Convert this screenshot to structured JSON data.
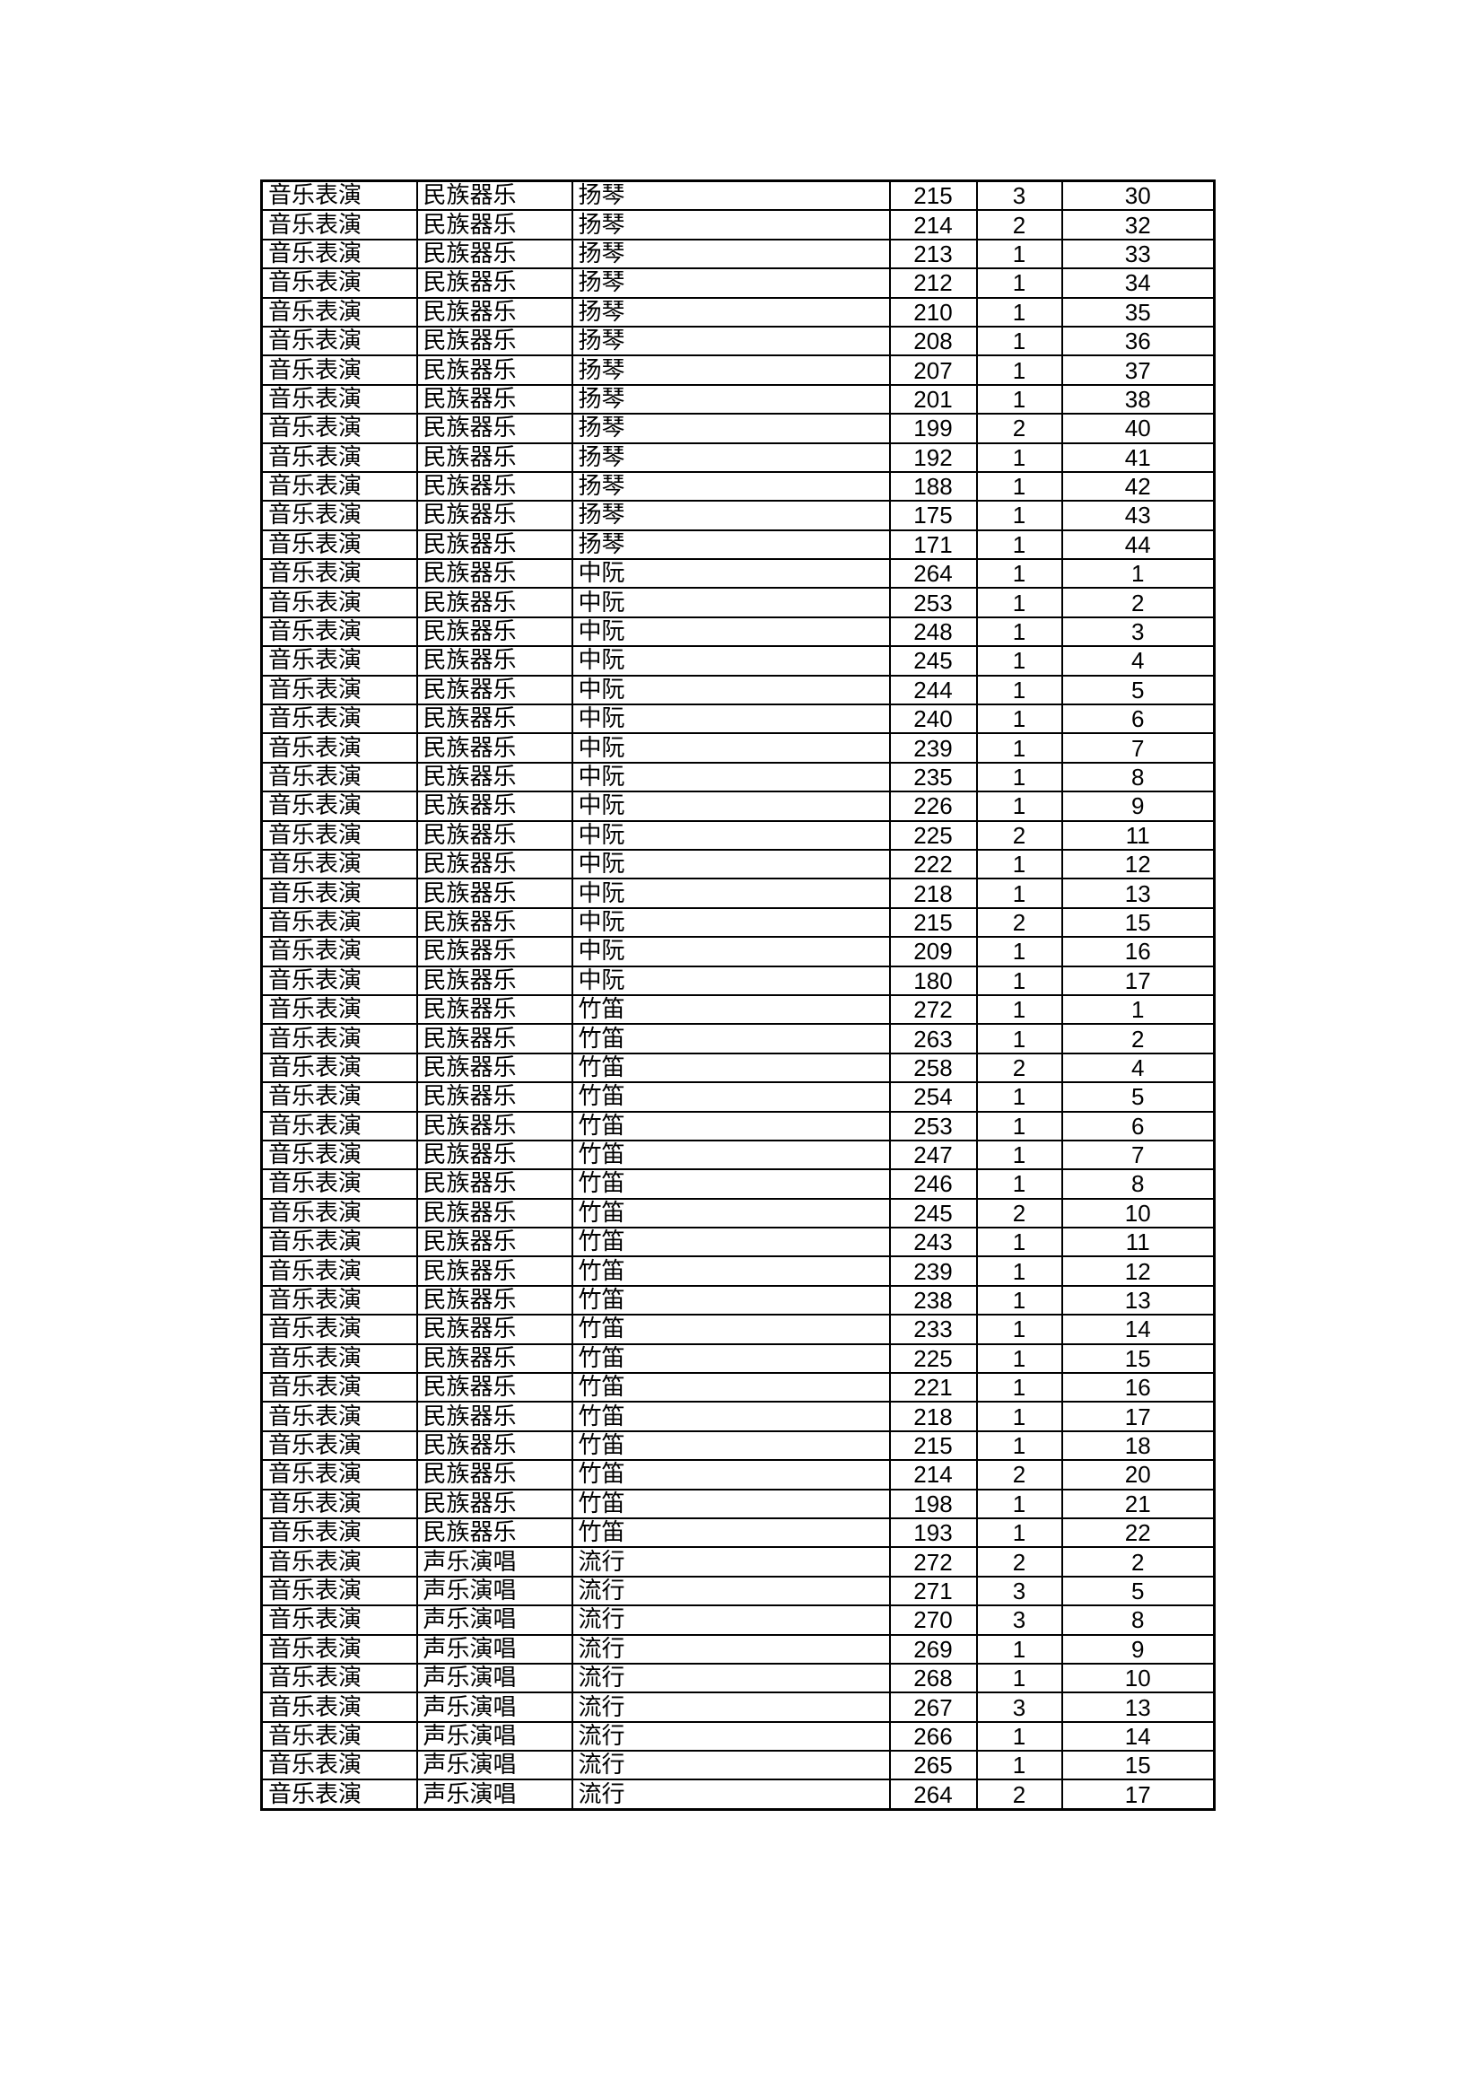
{
  "table": {
    "rows": [
      [
        "音乐表演",
        "民族器乐",
        "扬琴",
        "215",
        "3",
        "30"
      ],
      [
        "音乐表演",
        "民族器乐",
        "扬琴",
        "214",
        "2",
        "32"
      ],
      [
        "音乐表演",
        "民族器乐",
        "扬琴",
        "213",
        "1",
        "33"
      ],
      [
        "音乐表演",
        "民族器乐",
        "扬琴",
        "212",
        "1",
        "34"
      ],
      [
        "音乐表演",
        "民族器乐",
        "扬琴",
        "210",
        "1",
        "35"
      ],
      [
        "音乐表演",
        "民族器乐",
        "扬琴",
        "208",
        "1",
        "36"
      ],
      [
        "音乐表演",
        "民族器乐",
        "扬琴",
        "207",
        "1",
        "37"
      ],
      [
        "音乐表演",
        "民族器乐",
        "扬琴",
        "201",
        "1",
        "38"
      ],
      [
        "音乐表演",
        "民族器乐",
        "扬琴",
        "199",
        "2",
        "40"
      ],
      [
        "音乐表演",
        "民族器乐",
        "扬琴",
        "192",
        "1",
        "41"
      ],
      [
        "音乐表演",
        "民族器乐",
        "扬琴",
        "188",
        "1",
        "42"
      ],
      [
        "音乐表演",
        "民族器乐",
        "扬琴",
        "175",
        "1",
        "43"
      ],
      [
        "音乐表演",
        "民族器乐",
        "扬琴",
        "171",
        "1",
        "44"
      ],
      [
        "音乐表演",
        "民族器乐",
        "中阮",
        "264",
        "1",
        "1"
      ],
      [
        "音乐表演",
        "民族器乐",
        "中阮",
        "253",
        "1",
        "2"
      ],
      [
        "音乐表演",
        "民族器乐",
        "中阮",
        "248",
        "1",
        "3"
      ],
      [
        "音乐表演",
        "民族器乐",
        "中阮",
        "245",
        "1",
        "4"
      ],
      [
        "音乐表演",
        "民族器乐",
        "中阮",
        "244",
        "1",
        "5"
      ],
      [
        "音乐表演",
        "民族器乐",
        "中阮",
        "240",
        "1",
        "6"
      ],
      [
        "音乐表演",
        "民族器乐",
        "中阮",
        "239",
        "1",
        "7"
      ],
      [
        "音乐表演",
        "民族器乐",
        "中阮",
        "235",
        "1",
        "8"
      ],
      [
        "音乐表演",
        "民族器乐",
        "中阮",
        "226",
        "1",
        "9"
      ],
      [
        "音乐表演",
        "民族器乐",
        "中阮",
        "225",
        "2",
        "11"
      ],
      [
        "音乐表演",
        "民族器乐",
        "中阮",
        "222",
        "1",
        "12"
      ],
      [
        "音乐表演",
        "民族器乐",
        "中阮",
        "218",
        "1",
        "13"
      ],
      [
        "音乐表演",
        "民族器乐",
        "中阮",
        "215",
        "2",
        "15"
      ],
      [
        "音乐表演",
        "民族器乐",
        "中阮",
        "209",
        "1",
        "16"
      ],
      [
        "音乐表演",
        "民族器乐",
        "中阮",
        "180",
        "1",
        "17"
      ],
      [
        "音乐表演",
        "民族器乐",
        "竹笛",
        "272",
        "1",
        "1"
      ],
      [
        "音乐表演",
        "民族器乐",
        "竹笛",
        "263",
        "1",
        "2"
      ],
      [
        "音乐表演",
        "民族器乐",
        "竹笛",
        "258",
        "2",
        "4"
      ],
      [
        "音乐表演",
        "民族器乐",
        "竹笛",
        "254",
        "1",
        "5"
      ],
      [
        "音乐表演",
        "民族器乐",
        "竹笛",
        "253",
        "1",
        "6"
      ],
      [
        "音乐表演",
        "民族器乐",
        "竹笛",
        "247",
        "1",
        "7"
      ],
      [
        "音乐表演",
        "民族器乐",
        "竹笛",
        "246",
        "1",
        "8"
      ],
      [
        "音乐表演",
        "民族器乐",
        "竹笛",
        "245",
        "2",
        "10"
      ],
      [
        "音乐表演",
        "民族器乐",
        "竹笛",
        "243",
        "1",
        "11"
      ],
      [
        "音乐表演",
        "民族器乐",
        "竹笛",
        "239",
        "1",
        "12"
      ],
      [
        "音乐表演",
        "民族器乐",
        "竹笛",
        "238",
        "1",
        "13"
      ],
      [
        "音乐表演",
        "民族器乐",
        "竹笛",
        "233",
        "1",
        "14"
      ],
      [
        "音乐表演",
        "民族器乐",
        "竹笛",
        "225",
        "1",
        "15"
      ],
      [
        "音乐表演",
        "民族器乐",
        "竹笛",
        "221",
        "1",
        "16"
      ],
      [
        "音乐表演",
        "民族器乐",
        "竹笛",
        "218",
        "1",
        "17"
      ],
      [
        "音乐表演",
        "民族器乐",
        "竹笛",
        "215",
        "1",
        "18"
      ],
      [
        "音乐表演",
        "民族器乐",
        "竹笛",
        "214",
        "2",
        "20"
      ],
      [
        "音乐表演",
        "民族器乐",
        "竹笛",
        "198",
        "1",
        "21"
      ],
      [
        "音乐表演",
        "民族器乐",
        "竹笛",
        "193",
        "1",
        "22"
      ],
      [
        "音乐表演",
        "声乐演唱",
        "流行",
        "272",
        "2",
        "2"
      ],
      [
        "音乐表演",
        "声乐演唱",
        "流行",
        "271",
        "3",
        "5"
      ],
      [
        "音乐表演",
        "声乐演唱",
        "流行",
        "270",
        "3",
        "8"
      ],
      [
        "音乐表演",
        "声乐演唱",
        "流行",
        "269",
        "1",
        "9"
      ],
      [
        "音乐表演",
        "声乐演唱",
        "流行",
        "268",
        "1",
        "10"
      ],
      [
        "音乐表演",
        "声乐演唱",
        "流行",
        "267",
        "3",
        "13"
      ],
      [
        "音乐表演",
        "声乐演唱",
        "流行",
        "266",
        "1",
        "14"
      ],
      [
        "音乐表演",
        "声乐演唱",
        "流行",
        "265",
        "1",
        "15"
      ],
      [
        "音乐表演",
        "声乐演唱",
        "流行",
        "264",
        "2",
        "17"
      ]
    ]
  }
}
